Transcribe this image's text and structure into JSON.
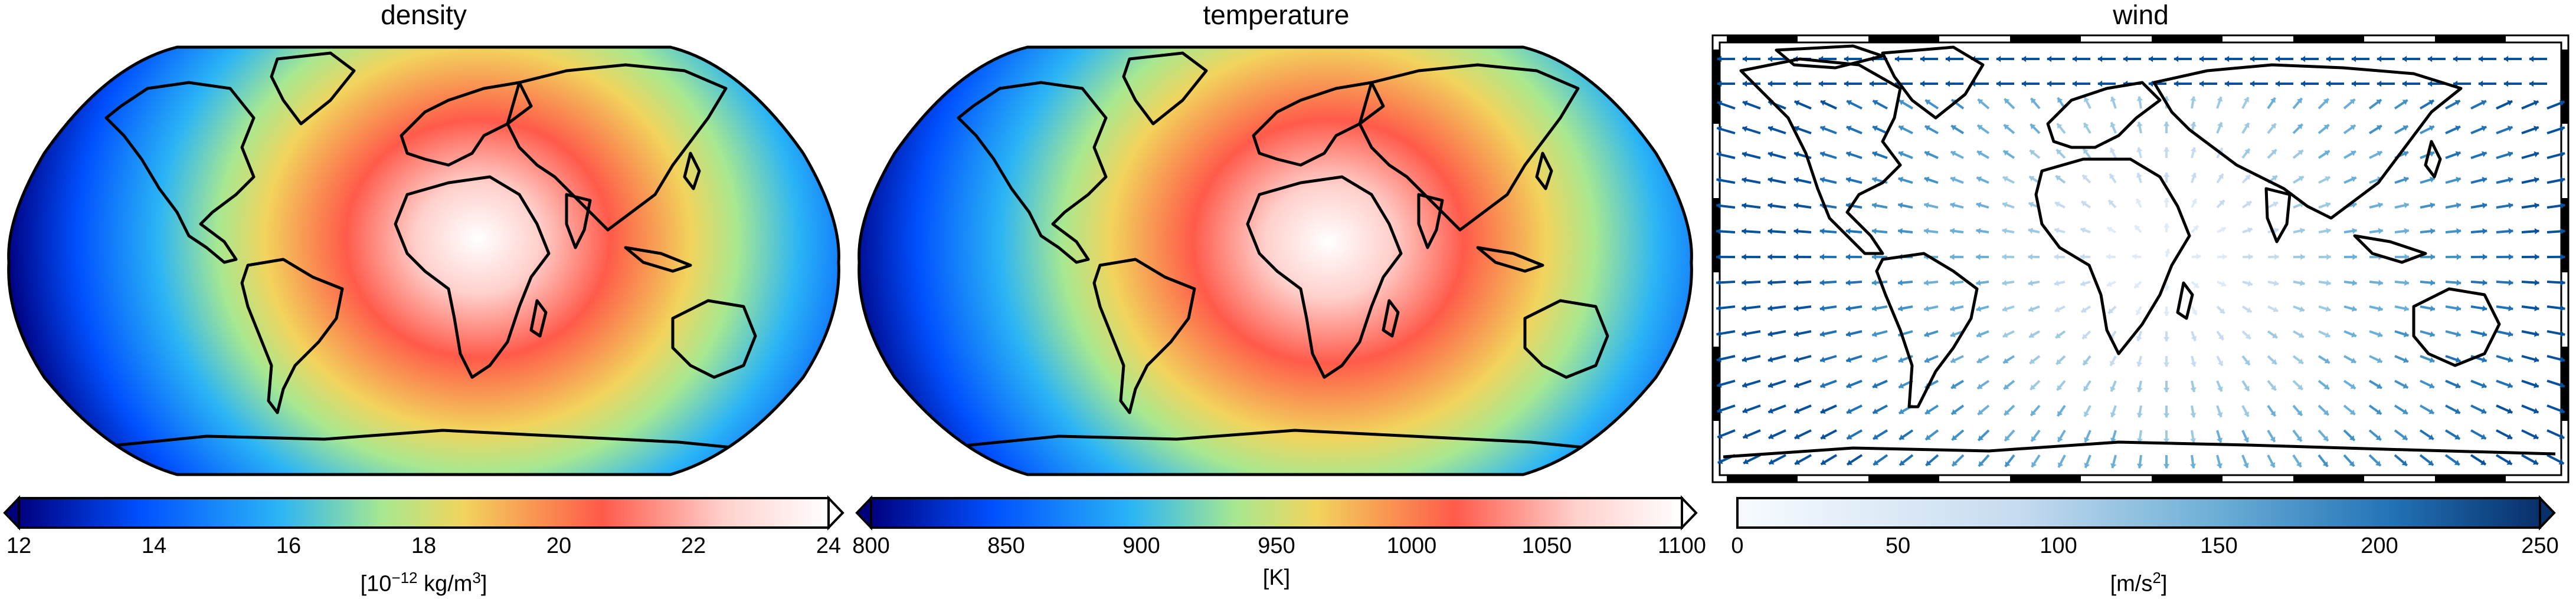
{
  "panels": [
    {
      "title": "density",
      "colorbar": {
        "colormap": "jet-like (dark blue → cyan → yellow → red → white)",
        "ticks": [
          "12",
          "14",
          "16",
          "18",
          "20",
          "22",
          "24"
        ],
        "tick_values": [
          12,
          14,
          16,
          18,
          20,
          22,
          24
        ],
        "range": [
          12,
          24
        ],
        "label_pre": "[10",
        "label_sup": "−12",
        "label_post": " kg/m",
        "label_sup2": "3",
        "label_end": "]",
        "extend": "both"
      }
    },
    {
      "title": "temperature",
      "colorbar": {
        "colormap": "jet-like (dark blue → cyan → yellow → red → white)",
        "ticks": [
          "800",
          "850",
          "900",
          "950",
          "1000",
          "1050",
          "1100"
        ],
        "tick_values": [
          800,
          850,
          900,
          950,
          1000,
          1050,
          1100
        ],
        "range": [
          800,
          1100
        ],
        "label": "[K]",
        "extend": "both"
      }
    },
    {
      "title": "wind",
      "colorbar": {
        "colormap": "Blues (white → dark blue)",
        "ticks": [
          "0",
          "50",
          "100",
          "150",
          "200",
          "250"
        ],
        "tick_values": [
          0,
          50,
          100,
          150,
          200,
          250
        ],
        "range": [
          0,
          250
        ],
        "label_pre": "[m/s",
        "label_sup": "2",
        "label_end": "]",
        "extend": "max"
      }
    }
  ],
  "colors": {
    "jet": [
      "#00007f",
      "#0050ff",
      "#2ab4f6",
      "#a8e890",
      "#f2d35c",
      "#ff5a4a",
      "#ffffff"
    ],
    "blues": [
      "#f7fbff",
      "#9ecae1",
      "#4292c6",
      "#08306b"
    ]
  }
}
